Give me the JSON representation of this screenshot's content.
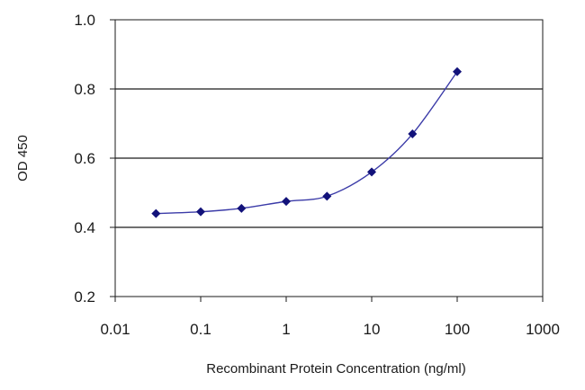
{
  "chart_data": {
    "type": "line",
    "title": "",
    "xlabel": "Recombinant Protein Concentration (ng/ml)",
    "ylabel": "OD 450",
    "x_scale": "log",
    "xlim": [
      0.01,
      1000
    ],
    "ylim": [
      0.2,
      1.0
    ],
    "x_ticks": [
      "0.01",
      "0.1",
      "1",
      "10",
      "100",
      "1000"
    ],
    "y_ticks": [
      "0.2",
      "0.4",
      "0.6",
      "0.8",
      "1.0"
    ],
    "y_tick_values": [
      0.2,
      0.4,
      0.6,
      0.8,
      1.0
    ],
    "x_tick_values": [
      0.01,
      0.1,
      1,
      10,
      100,
      1000
    ],
    "grid": "horizontal",
    "series": [
      {
        "x": [
          0.03,
          0.1,
          0.3,
          1,
          3,
          10,
          30,
          100
        ],
        "y": [
          0.44,
          0.445,
          0.455,
          0.475,
          0.49,
          0.56,
          0.67,
          0.85
        ]
      }
    ],
    "colors": {
      "line": "#3b3ba8",
      "marker": "#12127a",
      "grid": "#1a1a1a",
      "axis": "#1a1a1a"
    }
  }
}
